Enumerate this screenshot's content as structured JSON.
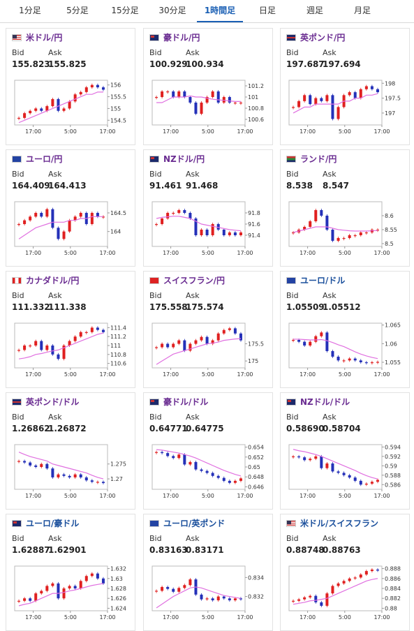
{
  "tabs": [
    "1分足",
    "5分足",
    "15分足",
    "30分足",
    "1時間足",
    "日足",
    "週足",
    "月足"
  ],
  "active_tab": 4,
  "quotes": [
    {
      "name": "米ドル/円",
      "link_color": "#6a2c91",
      "bid_label": "Bid",
      "ask_label": "Ask",
      "bid": "155.823",
      "ask": "155.825",
      "chart": {
        "type": "candlestick",
        "ylim": [
          154.3,
          156.2
        ],
        "yticks": [
          156,
          155.5,
          155,
          154.5
        ],
        "xticks": [
          "17:00",
          "5:00",
          "17:00"
        ],
        "up_color": "#e02020",
        "down_color": "#2430b8",
        "ma_color": "#e070e0",
        "values": [
          154.6,
          154.8,
          154.9,
          155.0,
          154.9,
          155.1,
          155.4,
          154.9,
          155.0,
          155.3,
          155.6,
          155.7,
          155.9,
          156.0,
          155.9,
          155.8
        ],
        "ma": [
          154.4,
          154.5,
          154.6,
          154.7,
          154.8,
          154.9,
          155.0,
          155.1,
          155.2,
          155.3,
          155.4,
          155.5,
          155.6,
          155.6,
          155.7,
          155.7
        ]
      }
    },
    {
      "name": "豪ドル/円",
      "link_color": "#6a2c91",
      "bid_label": "Bid",
      "ask_label": "Ask",
      "bid": "100.929",
      "ask": "100.934",
      "chart": {
        "type": "candlestick",
        "ylim": [
          100.5,
          101.3
        ],
        "yticks": [
          101.2,
          101,
          100.8,
          100.6
        ],
        "xticks": [
          "17:00",
          "5:00",
          "17:00"
        ],
        "up_color": "#e02020",
        "down_color": "#2430b8",
        "ma_color": "#e070e0",
        "values": [
          101.0,
          101.1,
          101.1,
          101.0,
          101.1,
          101.0,
          100.9,
          100.7,
          100.9,
          101.0,
          101.1,
          100.9,
          101.0,
          100.9,
          100.9,
          100.9
        ],
        "ma": [
          100.9,
          100.9,
          100.95,
          101.0,
          101.0,
          101.0,
          101.02,
          101.0,
          101.0,
          100.98,
          100.96,
          100.95,
          100.94,
          100.93,
          100.92,
          100.92
        ]
      }
    },
    {
      "name": "英ポンド/円",
      "link_color": "#6a2c91",
      "bid_label": "Bid",
      "ask_label": "Ask",
      "bid": "197.687",
      "ask": "197.694",
      "chart": {
        "type": "candlestick",
        "ylim": [
          196.6,
          198.1
        ],
        "yticks": [
          198,
          197.5,
          197
        ],
        "xticks": [
          "17:00",
          "5:00",
          "17:00"
        ],
        "up_color": "#e02020",
        "down_color": "#2430b8",
        "ma_color": "#e070e0",
        "values": [
          197.2,
          197.4,
          197.6,
          197.3,
          197.5,
          197.4,
          197.6,
          196.8,
          197.2,
          197.6,
          197.7,
          197.5,
          197.8,
          197.9,
          197.8,
          197.7
        ],
        "ma": [
          197.0,
          197.1,
          197.2,
          197.2,
          197.3,
          197.3,
          197.3,
          197.3,
          197.3,
          197.4,
          197.4,
          197.5,
          197.5,
          197.6,
          197.6,
          197.65
        ]
      }
    },
    {
      "name": "ユーロ/円",
      "link_color": "#6a2c91",
      "bid_label": "Bid",
      "ask_label": "Ask",
      "bid": "164.409",
      "ask": "164.413",
      "chart": {
        "type": "candlestick",
        "ylim": [
          163.6,
          164.8
        ],
        "yticks": [
          164.5,
          164
        ],
        "xticks": [
          "17:00",
          "5:00",
          "17:00"
        ],
        "up_color": "#e02020",
        "down_color": "#2430b8",
        "ma_color": "#e070e0",
        "values": [
          164.2,
          164.3,
          164.4,
          164.5,
          164.4,
          164.6,
          164.1,
          163.8,
          164.0,
          164.3,
          164.4,
          164.5,
          164.2,
          164.5,
          164.4,
          164.4
        ],
        "ma": [
          163.8,
          163.9,
          164.0,
          164.1,
          164.15,
          164.2,
          164.25,
          164.25,
          164.25,
          164.3,
          164.3,
          164.35,
          164.35,
          164.4,
          164.4,
          164.4
        ]
      }
    },
    {
      "name": "NZドル/円",
      "link_color": "#6a2c91",
      "bid_label": "Bid",
      "ask_label": "Ask",
      "bid": "91.461",
      "ask": "91.468",
      "chart": {
        "type": "candlestick",
        "ylim": [
          91.2,
          92.0
        ],
        "yticks": [
          91.8,
          91.6,
          91.4
        ],
        "xticks": [
          "17:00",
          "5:00",
          "17:00"
        ],
        "up_color": "#e02020",
        "down_color": "#2430b8",
        "ma_color": "#e070e0",
        "values": [
          91.6,
          91.7,
          91.8,
          91.8,
          91.85,
          91.8,
          91.7,
          91.4,
          91.5,
          91.4,
          91.6,
          91.5,
          91.4,
          91.45,
          91.4,
          91.45
        ],
        "ma": [
          91.7,
          91.72,
          91.73,
          91.74,
          91.74,
          91.72,
          91.7,
          91.65,
          91.6,
          91.58,
          91.56,
          91.54,
          91.52,
          91.5,
          91.49,
          91.48
        ]
      }
    },
    {
      "name": "ランド/円",
      "link_color": "#6a2c91",
      "bid_label": "Bid",
      "ask_label": "Ask",
      "bid": "8.538",
      "ask": "8.547",
      "chart": {
        "type": "candlestick",
        "ylim": [
          8.49,
          8.65
        ],
        "yticks": [
          8.6,
          8.55,
          8.5
        ],
        "xticks": [
          "17:00",
          "5:00",
          "17:00"
        ],
        "up_color": "#e02020",
        "down_color": "#2430b8",
        "ma_color": "#e070e0",
        "values": [
          8.54,
          8.55,
          8.56,
          8.58,
          8.62,
          8.6,
          8.55,
          8.51,
          8.52,
          8.52,
          8.53,
          8.53,
          8.54,
          8.54,
          8.55,
          8.55
        ],
        "ma": [
          8.54,
          8.545,
          8.55,
          8.555,
          8.56,
          8.56,
          8.56,
          8.555,
          8.55,
          8.548,
          8.546,
          8.545,
          8.545,
          8.545,
          8.546,
          8.547
        ]
      }
    },
    {
      "name": "カナダドル/円",
      "link_color": "#6a2c91",
      "bid_label": "Bid",
      "ask_label": "Ask",
      "bid": "111.332",
      "ask": "111.338",
      "chart": {
        "type": "candlestick",
        "ylim": [
          110.5,
          111.5
        ],
        "yticks": [
          111.4,
          111.2,
          111,
          110.8,
          110.6
        ],
        "xticks": [
          "17:00",
          "5:00",
          "17:00"
        ],
        "up_color": "#e02020",
        "down_color": "#2430b8",
        "ma_color": "#e070e0",
        "values": [
          110.9,
          111.0,
          111.0,
          111.1,
          110.9,
          111.0,
          110.8,
          110.7,
          111.0,
          111.1,
          111.2,
          111.3,
          111.3,
          111.4,
          111.35,
          111.3
        ],
        "ma": [
          110.7,
          110.72,
          110.75,
          110.8,
          110.82,
          110.85,
          110.88,
          110.9,
          110.95,
          111.0,
          111.05,
          111.1,
          111.15,
          111.2,
          111.25,
          111.28
        ]
      }
    },
    {
      "name": "スイスフラン/円",
      "link_color": "#6a2c91",
      "bid_label": "Bid",
      "ask_label": "Ask",
      "bid": "175.558",
      "ask": "175.574",
      "chart": {
        "type": "candlestick",
        "ylim": [
          174.8,
          176.1
        ],
        "yticks": [
          175.5,
          175
        ],
        "xticks": [
          "17:00",
          "5:00",
          "17:00"
        ],
        "up_color": "#e02020",
        "down_color": "#2430b8",
        "ma_color": "#e070e0",
        "values": [
          175.4,
          175.5,
          175.4,
          175.5,
          175.6,
          175.3,
          175.5,
          175.6,
          175.7,
          175.5,
          175.6,
          175.8,
          175.9,
          175.95,
          175.8,
          175.6
        ],
        "ma": [
          174.9,
          175.0,
          175.1,
          175.2,
          175.25,
          175.3,
          175.35,
          175.4,
          175.45,
          175.5,
          175.52,
          175.55,
          175.6,
          175.62,
          175.64,
          175.65
        ]
      }
    },
    {
      "name": "ユーロ/ドル",
      "link_color": "#1a4f9c",
      "bid_label": "Bid",
      "ask_label": "Ask",
      "bid": "1.05509",
      "ask": "1.05512",
      "chart": {
        "type": "candlestick",
        "ylim": [
          1.0535,
          1.0655
        ],
        "yticks": [
          1.065,
          1.06,
          1.055
        ],
        "xticks": [
          "17:00",
          "5:00",
          "17:00"
        ],
        "up_color": "#e02020",
        "down_color": "#2430b8",
        "ma_color": "#e070e0",
        "values": [
          1.061,
          1.0605,
          1.0595,
          1.0605,
          1.062,
          1.063,
          1.058,
          1.0565,
          1.0555,
          1.0555,
          1.056,
          1.0555,
          1.055,
          1.0548,
          1.055,
          1.0551
        ],
        "ma": [
          1.0612,
          1.0612,
          1.0611,
          1.061,
          1.061,
          1.0611,
          1.0608,
          1.0603,
          1.0597,
          1.0592,
          1.0585,
          1.0578,
          1.0572,
          1.0567,
          1.0563,
          1.056
        ]
      }
    },
    {
      "name": "英ポンド/ドル",
      "link_color": "#6a2c91",
      "bid_label": "Bid",
      "ask_label": "Ask",
      "bid": "1.26862",
      "ask": "1.26872",
      "chart": {
        "type": "candlestick",
        "ylim": [
          1.2665,
          1.2815
        ],
        "yticks": [
          1.275,
          1.27
        ],
        "xticks": [
          "17:00",
          "5:00",
          "17:00"
        ],
        "up_color": "#e02020",
        "down_color": "#2430b8",
        "ma_color": "#e070e0",
        "values": [
          1.276,
          1.2755,
          1.2745,
          1.274,
          1.275,
          1.2735,
          1.2705,
          1.2715,
          1.271,
          1.2705,
          1.2715,
          1.2705,
          1.2695,
          1.269,
          1.269,
          1.2686
        ],
        "ma": [
          1.279,
          1.2782,
          1.2775,
          1.277,
          1.2765,
          1.276,
          1.275,
          1.2745,
          1.274,
          1.2735,
          1.273,
          1.2725,
          1.272,
          1.2712,
          1.2705,
          1.27
        ]
      }
    },
    {
      "name": "豪ドル/ドル",
      "link_color": "#6a2c91",
      "bid_label": "Bid",
      "ask_label": "Ask",
      "bid": "0.64771",
      "ask": "0.64775",
      "chart": {
        "type": "candlestick",
        "ylim": [
          0.6455,
          0.6545
        ],
        "yticks": [
          0.654,
          0.652,
          0.65,
          0.648,
          0.646
        ],
        "xticks": [
          "17:00",
          "5:00",
          "17:00"
        ],
        "up_color": "#e02020",
        "down_color": "#2430b8",
        "ma_color": "#e070e0",
        "values": [
          0.653,
          0.6528,
          0.6522,
          0.6518,
          0.6525,
          0.6505,
          0.651,
          0.6495,
          0.6492,
          0.6488,
          0.6482,
          0.6478,
          0.6472,
          0.6468,
          0.6472,
          0.6477
        ],
        "ma": [
          0.6535,
          0.6534,
          0.6532,
          0.653,
          0.6528,
          0.6525,
          0.6522,
          0.6518,
          0.6513,
          0.6508,
          0.6503,
          0.6498,
          0.6493,
          0.6489,
          0.6485,
          0.6482
        ]
      }
    },
    {
      "name": "NZドル/ドル",
      "link_color": "#6a2c91",
      "bid_label": "Bid",
      "ask_label": "Ask",
      "bid": "0.58690",
      "ask": "0.58704",
      "chart": {
        "type": "candlestick",
        "ylim": [
          0.585,
          0.5945
        ],
        "yticks": [
          0.594,
          0.592,
          0.59,
          0.588,
          0.586
        ],
        "xticks": [
          "17:00",
          "5:00",
          "17:00"
        ],
        "up_color": "#e02020",
        "down_color": "#2430b8",
        "ma_color": "#e070e0",
        "values": [
          0.592,
          0.5918,
          0.5912,
          0.5915,
          0.592,
          0.5895,
          0.5905,
          0.5888,
          0.5885,
          0.588,
          0.5875,
          0.5868,
          0.586,
          0.5862,
          0.5866,
          0.587
        ],
        "ma": [
          0.5935,
          0.5932,
          0.593,
          0.5927,
          0.5924,
          0.592,
          0.5915,
          0.591,
          0.5905,
          0.59,
          0.5895,
          0.589,
          0.5884,
          0.5879,
          0.5875,
          0.5872
        ]
      }
    },
    {
      "name": "ユーロ/豪ドル",
      "link_color": "#1a4f9c",
      "bid_label": "Bid",
      "ask_label": "Ask",
      "bid": "1.62887",
      "ask": "1.62901",
      "chart": {
        "type": "candlestick",
        "ylim": [
          1.6235,
          1.6325
        ],
        "yticks": [
          1.632,
          1.63,
          1.628,
          1.626,
          1.624
        ],
        "xticks": [
          "17:00",
          "5:00",
          "17:00"
        ],
        "up_color": "#e02020",
        "down_color": "#2430b8",
        "ma_color": "#e070e0",
        "values": [
          1.6255,
          1.626,
          1.6255,
          1.627,
          1.6275,
          1.6285,
          1.629,
          1.626,
          1.628,
          1.6285,
          1.628,
          1.6295,
          1.6305,
          1.631,
          1.63,
          1.629
        ],
        "ma": [
          1.6245,
          1.6248,
          1.625,
          1.6255,
          1.626,
          1.6265,
          1.627,
          1.627,
          1.6272,
          1.6275,
          1.6277,
          1.628,
          1.6283,
          1.6286,
          1.6288,
          1.629
        ]
      }
    },
    {
      "name": "ユーロ/英ポンド",
      "link_color": "#1a4f9c",
      "bid_label": "Bid",
      "ask_label": "Ask",
      "bid": "0.83163",
      "ask": "0.83171",
      "chart": {
        "type": "candlestick",
        "ylim": [
          0.8305,
          0.8352
        ],
        "yticks": [
          0.834,
          0.832
        ],
        "xticks": [
          "17:00",
          "5:00",
          "17:00"
        ],
        "up_color": "#e02020",
        "down_color": "#2430b8",
        "ma_color": "#e070e0",
        "values": [
          0.8326,
          0.833,
          0.8328,
          0.8325,
          0.8329,
          0.8332,
          0.8338,
          0.8322,
          0.8317,
          0.8318,
          0.8316,
          0.832,
          0.8318,
          0.8316,
          0.8318,
          0.8317
        ],
        "ma": [
          0.8308,
          0.8312,
          0.8316,
          0.832,
          0.8323,
          0.8326,
          0.8329,
          0.833,
          0.8329,
          0.8327,
          0.8325,
          0.8323,
          0.8321,
          0.832,
          0.8319,
          0.8318
        ]
      }
    },
    {
      "name": "米ドル/スイスフラン",
      "link_color": "#1a4f9c",
      "bid_label": "Bid",
      "ask_label": "Ask",
      "bid": "0.88748",
      "ask": "0.88763",
      "chart": {
        "type": "candlestick",
        "ylim": [
          0.8795,
          0.8885
        ],
        "yticks": [
          0.888,
          0.886,
          0.884,
          0.882,
          0.88
        ],
        "xticks": [
          "17:00",
          "5:00",
          "17:00"
        ],
        "up_color": "#e02020",
        "down_color": "#2430b8",
        "ma_color": "#e070e0",
        "values": [
          0.8815,
          0.8818,
          0.8822,
          0.8825,
          0.8812,
          0.8805,
          0.883,
          0.8845,
          0.885,
          0.8855,
          0.886,
          0.8862,
          0.8868,
          0.8875,
          0.8878,
          0.8876
        ],
        "ma": [
          0.8808,
          0.881,
          0.8812,
          0.8815,
          0.8816,
          0.8818,
          0.882,
          0.8825,
          0.883,
          0.8835,
          0.884,
          0.8845,
          0.885,
          0.8855,
          0.8858,
          0.886
        ]
      }
    }
  ]
}
